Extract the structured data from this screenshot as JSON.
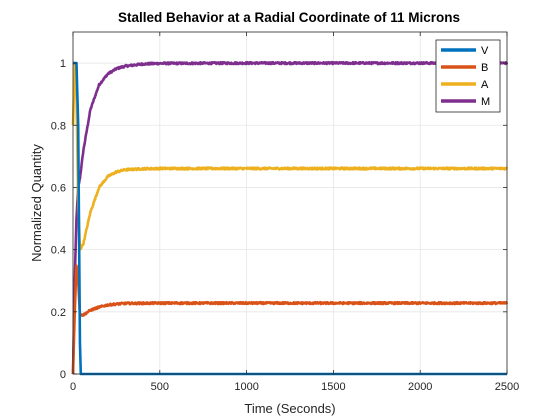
{
  "chart_data": {
    "type": "line",
    "title": "Stalled Behavior at a Radial Coordinate of 11 Microns",
    "xlabel": "Time (Seconds)",
    "ylabel": "Normalized Quantity",
    "xlim": [
      0,
      2500
    ],
    "ylim": [
      0,
      1.1
    ],
    "xticks": [
      0,
      500,
      1000,
      1500,
      2000,
      2500
    ],
    "yticks": [
      0,
      0.2,
      0.4,
      0.6,
      0.8,
      1
    ],
    "xtick_labels": [
      "0",
      "500",
      "1000",
      "1500",
      "2000",
      "2500"
    ],
    "ytick_labels": [
      "0",
      "0.2",
      "0.4",
      "0.6",
      "0.8",
      "1"
    ],
    "grid": true,
    "legend_position": "top-right",
    "series": [
      {
        "name": "V",
        "color": "#0072BD",
        "x": [
          0,
          20,
          30,
          40,
          45,
          100,
          500,
          1000,
          1500,
          2000,
          2500
        ],
        "y": [
          1.0,
          1.0,
          0.8,
          0.1,
          0.0,
          0.0,
          0.0,
          0.0,
          0.0,
          0.0,
          0.0
        ]
      },
      {
        "name": "B",
        "color": "#D95319",
        "x": [
          0,
          10,
          20,
          30,
          40,
          60,
          100,
          150,
          200,
          250,
          300,
          500,
          1000,
          1500,
          2000,
          2500
        ],
        "y": [
          0.0,
          0.2,
          0.35,
          0.3,
          0.19,
          0.19,
          0.205,
          0.215,
          0.222,
          0.225,
          0.227,
          0.228,
          0.228,
          0.228,
          0.228,
          0.228
        ],
        "noise": 0.003
      },
      {
        "name": "A",
        "color": "#EDB120",
        "x": [
          0,
          10,
          20,
          30,
          40,
          60,
          100,
          150,
          200,
          250,
          300,
          400,
          500,
          1000,
          1500,
          2000,
          2500
        ],
        "y": [
          0.8,
          1.0,
          0.9,
          0.55,
          0.4,
          0.42,
          0.52,
          0.6,
          0.635,
          0.65,
          0.657,
          0.66,
          0.661,
          0.661,
          0.661,
          0.661,
          0.661
        ],
        "noise": 0.003
      },
      {
        "name": "M",
        "color": "#7E2F8E",
        "x": [
          0,
          10,
          20,
          30,
          40,
          60,
          100,
          150,
          200,
          250,
          300,
          400,
          500,
          1000,
          1500,
          2000,
          2500
        ],
        "y": [
          0.0,
          0.3,
          0.5,
          0.6,
          0.63,
          0.72,
          0.85,
          0.93,
          0.965,
          0.982,
          0.99,
          0.997,
          0.999,
          1.0,
          1.0,
          1.0,
          1.0
        ],
        "noise": 0.003
      }
    ]
  }
}
